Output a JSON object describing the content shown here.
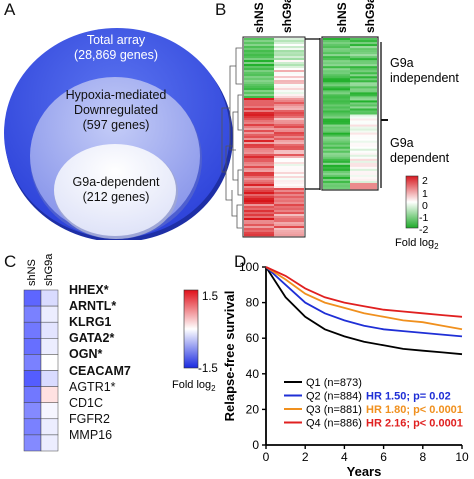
{
  "panels": {
    "a": "A",
    "b": "B",
    "c": "C",
    "d": "D"
  },
  "venn": {
    "outer": [
      "Total array",
      "(28,869 genes)"
    ],
    "middle": [
      "Hypoxia-mediated",
      "Downregulated",
      "(597 genes)"
    ],
    "inner": [
      "G9a-dependent",
      "(212 genes)"
    ]
  },
  "heatmap_b": {
    "col_shNS": "shNS",
    "col_shG9a": "shG9a",
    "zoom_col_shNS": "shNS",
    "zoom_col_shG9a": "shG9a",
    "independent": [
      "G9a",
      "independent"
    ],
    "dependent": [
      "G9a",
      "dependent"
    ],
    "scale_ticks": [
      "2",
      "1",
      "0",
      "-1",
      "-2"
    ],
    "scale_label": "Fold log",
    "scale_sub": "2"
  },
  "heatmap_c": {
    "col_shNS": "shNS",
    "col_shG9a": "shG9a",
    "genes": [
      {
        "name": "HHEX*",
        "bold": true
      },
      {
        "name": "ARNTL*",
        "bold": true
      },
      {
        "name": "KLRG1",
        "bold": true
      },
      {
        "name": "GATA2*",
        "bold": true
      },
      {
        "name": "OGN*",
        "bold": true
      },
      {
        "name": "CEACAM7",
        "bold": true
      },
      {
        "name": "AGTR1*",
        "bold": false
      },
      {
        "name": "CD1C",
        "bold": false
      },
      {
        "name": "FGFR2",
        "bold": false
      },
      {
        "name": "MMP16",
        "bold": false
      }
    ],
    "scale_max": "1.5",
    "scale_min": "-1.5",
    "scale_label": "Fold log",
    "scale_sub": "2"
  },
  "chart_data": {
    "type": "line",
    "xlabel": "Years",
    "ylabel": "Relapse-free survival",
    "xlim": [
      0,
      10
    ],
    "ylim": [
      0,
      100
    ],
    "x_ticks": [
      "0",
      "2",
      "4",
      "6",
      "8",
      "10"
    ],
    "y_ticks": [
      "0",
      "20",
      "40",
      "60",
      "80",
      "100"
    ],
    "legend_position": "bottom-right",
    "x": [
      0,
      1,
      2,
      3,
      4,
      5,
      6,
      7,
      8,
      9,
      10
    ],
    "series": [
      {
        "name": "Q1 (n=873)",
        "hr": "",
        "color": "#000000",
        "values": [
          100,
          83,
          72,
          65,
          61,
          58,
          56,
          54,
          53,
          52,
          51
        ]
      },
      {
        "name": "Q2 (n=884)",
        "hr": "HR 1.50; p= 0.02",
        "color": "#1f2fd6",
        "values": [
          100,
          90,
          80,
          74,
          70,
          67,
          65,
          64,
          63,
          62,
          61
        ]
      },
      {
        "name": "Q3 (n=881)",
        "hr": "HR 1.80; p< 0.0001",
        "color": "#f0901e",
        "values": [
          100,
          93,
          85,
          80,
          77,
          74,
          72,
          70,
          69,
          67,
          65
        ]
      },
      {
        "name": "Q4 (n=886)",
        "hr": "HR 2.16; p< 0.0001",
        "color": "#e02020",
        "values": [
          100,
          95,
          88,
          83,
          80,
          78,
          76,
          75,
          74,
          73,
          72
        ]
      }
    ]
  }
}
